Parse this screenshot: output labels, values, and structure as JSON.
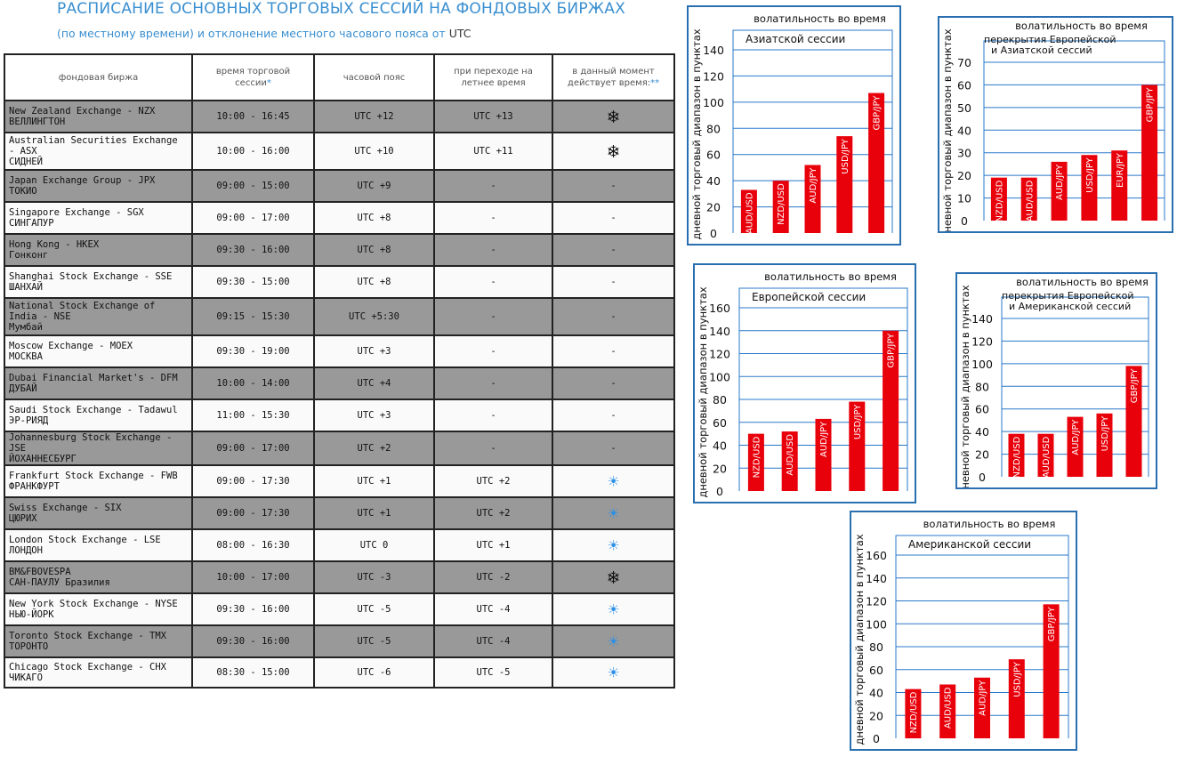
{
  "header": {
    "title": "РАСПИСАНИЕ ОСНОВНЫХ ТОРГОВЫХ СЕССИЙ НА ФОНДОВЫХ БИРЖАХ",
    "subtitle": "(по местному времени) и отклонение местного часового пояса от",
    "subtitle_utc": "UTC"
  },
  "table": {
    "headers": [
      "фондовая биржа",
      "время торговой сессии",
      "часовой пояс",
      "при переходе на летнее время",
      "в данный момент действует время:"
    ],
    "header_marks": [
      "*",
      "**"
    ],
    "rows": [
      {
        "name": "New Zealand Exchange - NZX",
        "city": "ВЕЛЛИНГТОН",
        "time": "10:00 - 16:45",
        "tz": "UTC +12",
        "summer": "UTC +13",
        "now": "winter"
      },
      {
        "name": "Australian Securities Exchange - ASX",
        "city": "СИДНЕЙ",
        "time": "10:00 - 16:00",
        "tz": "UTC +10",
        "summer": "UTC +11",
        "now": "winter"
      },
      {
        "name": "Japan Exchange Group - JPX",
        "city": "ТОКИО",
        "time": "09:00 - 15:00",
        "tz": "UTC +9",
        "summer": "-",
        "now": "-"
      },
      {
        "name": "Singapore Exchange - SGX",
        "city": "СИНГАПУР",
        "time": "09:00 - 17:00",
        "tz": "UTC +8",
        "summer": "-",
        "now": "-"
      },
      {
        "name": "Hong Kong - HKEX",
        "city": "Гонконг",
        "time": "09:30 - 16:00",
        "tz": "UTC +8",
        "summer": "-",
        "now": "-"
      },
      {
        "name": "Shanghai Stock Exchange - SSE",
        "city": "ШАНХАЙ",
        "time": "09:30 - 15:00",
        "tz": "UTC +8",
        "summer": "-",
        "now": "-"
      },
      {
        "name": "National Stock Exchange of India - NSE",
        "city": "Мумбай",
        "time": "09:15 - 15:30",
        "tz": "UTC +5:30",
        "summer": "-",
        "now": "-"
      },
      {
        "name": "Moscow Exchange - MOEX",
        "city": "МОСКВА",
        "time": "09:30 - 19:00",
        "tz": "UTC +3",
        "summer": "-",
        "now": "-"
      },
      {
        "name": "Dubai Financial Market's - DFM",
        "city": "ДУБАЙ",
        "time": "10:00 - 14:00",
        "tz": "UTC +4",
        "summer": "-",
        "now": "-"
      },
      {
        "name": "Saudi Stock Exchange - Tadawul",
        "city": "ЭР-РИЯД",
        "time": "11:00 - 15:30",
        "tz": "UTC +3",
        "summer": "-",
        "now": "-"
      },
      {
        "name": "Johannesburg Stock Exchange - JSE",
        "city": "ЙОХАННЕСБУРГ",
        "time": "09:00 - 17:00",
        "tz": "UTC +2",
        "summer": "-",
        "now": "-"
      },
      {
        "name": "Frankfurt Stock Exchange - FWB",
        "city": "ФРАНКФУРТ",
        "time": "09:00 - 17:30",
        "tz": "UTC +1",
        "summer": "UTC +2",
        "now": "summer"
      },
      {
        "name": "Swiss Exchange - SIX",
        "city": "ЦЮРИХ",
        "time": "09:00 - 17:30",
        "tz": "UTC +1",
        "summer": "UTC +2",
        "now": "summer"
      },
      {
        "name": "London Stock Exchange - LSE",
        "city": "ЛОНДОН",
        "time": "08:00 - 16:30",
        "tz": "UTC 0",
        "summer": "UTC +1",
        "now": "summer"
      },
      {
        "name": "BM&FBOVESPA",
        "city": "САН-ПАУЛУ Бразилия",
        "time": "10:00 - 17:00",
        "tz": "UTC -3",
        "summer": "UTC -2",
        "now": "winter"
      },
      {
        "name": "New York Stock Exchange - NYSE",
        "city": "НЬЮ-ЙОРК",
        "time": "09:30 - 16:00",
        "tz": "UTC -5",
        "summer": "UTC -4",
        "now": "summer"
      },
      {
        "name": "Toronto Stock Exchange - TMX",
        "city": "ТОРОНТО",
        "time": "09:30 - 16:00",
        "tz": "UTC -5",
        "summer": "UTC -4",
        "now": "summer"
      },
      {
        "name": "Chicago Stock Exchange - CHX",
        "city": "ЧИКАГО",
        "time": "08:30 - 15:00",
        "tz": "UTC -6",
        "summer": "UTC -5",
        "now": "summer"
      }
    ],
    "icons": {
      "winter": "snowflake-icon",
      "summer": "sun-icon"
    }
  },
  "chart_data": [
    {
      "type": "bar",
      "title": "волатильность во время",
      "subtitle": [
        "Азиатской сессии"
      ],
      "ylabel": "дневной торговый диапазон в пунктах",
      "categories": [
        "AUD/USD",
        "NZD/USD",
        "AUD/JPY",
        "USD/JPY",
        "GBP/JPY"
      ],
      "values": [
        33,
        40,
        52,
        74,
        107
      ],
      "ylim": [
        0,
        140
      ],
      "ticks": [
        0,
        20,
        40,
        60,
        80,
        100,
        120,
        140
      ],
      "bar_color": "#e8000b"
    },
    {
      "type": "bar",
      "title": "волатильность во время",
      "subtitle": [
        "перекрытия Европейской",
        "и Азиатской сессий"
      ],
      "ylabel": "дневной торговый диапазон в пунктах",
      "categories": [
        "NZD/USD",
        "AUD/USD",
        "AUD/JPY",
        "USD/JPY",
        "EUR/JPY",
        "GBP/JPY"
      ],
      "values": [
        19,
        19,
        26,
        29,
        31,
        60
      ],
      "ylim": [
        0,
        70
      ],
      "ticks": [
        0,
        10,
        20,
        30,
        40,
        50,
        60,
        70
      ],
      "bar_color": "#e8000b"
    },
    {
      "type": "bar",
      "title": "волатильность во время",
      "subtitle": [
        "Европейской сессии"
      ],
      "ylabel": "дневной торговый диапазон в пунктах",
      "categories": [
        "NZD/USD",
        "AUD/USD",
        "AUD/JPY",
        "USD/JPY",
        "GBP/JPY"
      ],
      "values": [
        50,
        52,
        63,
        78,
        140
      ],
      "ylim": [
        0,
        160
      ],
      "ticks": [
        0,
        20,
        40,
        60,
        80,
        100,
        120,
        140,
        160
      ],
      "bar_color": "#e8000b"
    },
    {
      "type": "bar",
      "title": "волатильность во время",
      "subtitle": [
        "перекрытия Европейской",
        "и Американской сессий"
      ],
      "ylabel": "дневной торговый диапазон в пунктах",
      "categories": [
        "NZD/USD",
        "AUD/USD",
        "AUD/JPY",
        "USD/JPY",
        "GBP/JPY"
      ],
      "values": [
        38,
        38,
        53,
        56,
        98
      ],
      "ylim": [
        0,
        140
      ],
      "ticks": [
        0,
        20,
        40,
        60,
        80,
        100,
        120,
        140
      ],
      "bar_color": "#e8000b"
    },
    {
      "type": "bar",
      "title": "волатильность во время",
      "subtitle": [
        "Американской сессии"
      ],
      "ylabel": "дневной торговый диапазон в пунктах",
      "categories": [
        "NZD/USD",
        "AUD/USD",
        "AUD/JPY",
        "USD/JPY",
        "GBP/JPY"
      ],
      "values": [
        43,
        47,
        53,
        69,
        117
      ],
      "ylim": [
        0,
        160
      ],
      "ticks": [
        0,
        20,
        40,
        60,
        80,
        100,
        120,
        140,
        160
      ],
      "bar_color": "#e8000b"
    }
  ]
}
